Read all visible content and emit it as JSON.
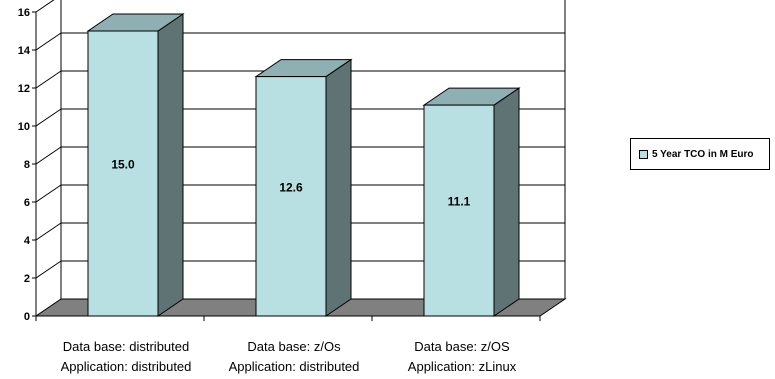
{
  "chart_data": {
    "type": "bar",
    "style": "3d-column",
    "categories": [
      [
        "Data base: distributed",
        "Application: distributed"
      ],
      [
        "Data base: z/Os",
        "Application: distributed"
      ],
      [
        "Data base: z/OS",
        "Application: zLinux"
      ]
    ],
    "series": [
      {
        "name": "5 Year TCO in M Euro",
        "values": [
          15.0,
          12.6,
          11.1
        ],
        "value_labels": [
          "15.0",
          "12.6",
          "11.1"
        ]
      }
    ],
    "ylim": [
      0,
      16
    ],
    "yticks": [
      0,
      2,
      4,
      6,
      8,
      10,
      12,
      14,
      16
    ],
    "grid": true,
    "legend": "right",
    "colors": {
      "front": "#b8e0e3",
      "top": "#8fb0b3",
      "side": "#5f7375",
      "floor": "#808080"
    }
  }
}
